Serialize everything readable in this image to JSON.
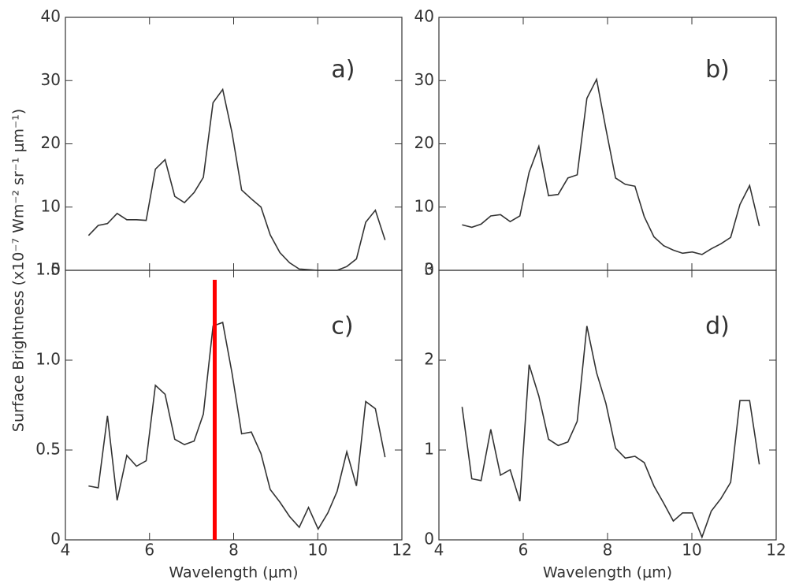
{
  "chart_data": [
    {
      "type": "line",
      "annotation": "a)",
      "ylabel": "Surface Brightness (x10⁻⁷ Wm⁻² sr⁻¹ μm⁻¹)",
      "x": [
        4.55,
        4.78,
        5.0,
        5.23,
        5.46,
        5.69,
        5.92,
        6.14,
        6.37,
        6.6,
        6.83,
        7.06,
        7.28,
        7.51,
        7.74,
        7.96,
        8.19,
        8.42,
        8.65,
        8.87,
        9.1,
        9.33,
        9.56,
        9.78,
        10.01,
        10.24,
        10.46,
        10.69,
        10.92,
        11.14,
        11.37,
        11.6
      ],
      "values": [
        5.5,
        7.1,
        7.4,
        9.0,
        8.0,
        8.0,
        7.9,
        16.0,
        17.5,
        11.7,
        10.7,
        12.3,
        14.7,
        26.5,
        28.6,
        21.8,
        12.7,
        11.3,
        10.0,
        5.6,
        2.8,
        1.2,
        0.2,
        0.1,
        0,
        0,
        0,
        0.6,
        1.8,
        7.6,
        9.5,
        4.8
      ],
      "color": "#333333",
      "xlim": [
        4,
        12
      ],
      "xticks": [
        4,
        6,
        8,
        10,
        12
      ],
      "ylim": [
        0,
        40
      ],
      "yticks": [
        0,
        10,
        20,
        30,
        40
      ]
    },
    {
      "type": "line",
      "annotation": "b)",
      "x": [
        4.55,
        4.78,
        5.0,
        5.23,
        5.46,
        5.69,
        5.92,
        6.14,
        6.37,
        6.6,
        6.83,
        7.06,
        7.28,
        7.51,
        7.74,
        7.96,
        8.19,
        8.42,
        8.65,
        8.87,
        9.1,
        9.33,
        9.56,
        9.78,
        10.01,
        10.24,
        10.46,
        10.69,
        10.92,
        11.14,
        11.37,
        11.6
      ],
      "values": [
        7.2,
        6.8,
        7.3,
        8.6,
        8.8,
        7.7,
        8.6,
        15.5,
        19.6,
        11.8,
        12.0,
        14.6,
        15.1,
        27.2,
        30.2,
        22.4,
        14.6,
        13.6,
        13.3,
        8.5,
        5.3,
        3.9,
        3.2,
        2.7,
        2.9,
        2.5,
        3.4,
        4.2,
        5.2,
        10.4,
        13.4,
        7.0
      ],
      "color": "#333333",
      "xlim": [
        4,
        12
      ],
      "xticks": [
        4,
        6,
        8,
        10,
        12
      ],
      "ylim": [
        0,
        40
      ],
      "yticks": [
        0,
        10,
        20,
        30,
        40
      ]
    },
    {
      "type": "line",
      "annotation": "c)",
      "xlabel": "Wavelength (μm)",
      "x": [
        4.55,
        4.78,
        5.0,
        5.23,
        5.46,
        5.69,
        5.92,
        6.14,
        6.37,
        6.6,
        6.83,
        7.06,
        7.28,
        7.51,
        7.74,
        7.96,
        8.19,
        8.42,
        8.65,
        8.87,
        9.1,
        9.33,
        9.56,
        9.78,
        10.01,
        10.24,
        10.46,
        10.69,
        10.92,
        11.14,
        11.37,
        11.6
      ],
      "values": [
        0.3,
        0.29,
        0.69,
        0.22,
        0.47,
        0.41,
        0.44,
        0.86,
        0.81,
        0.56,
        0.53,
        0.55,
        0.7,
        1.19,
        1.21,
        0.93,
        0.59,
        0.6,
        0.48,
        0.28,
        0.21,
        0.13,
        0.07,
        0.18,
        0.06,
        0.15,
        0.27,
        0.49,
        0.3,
        0.77,
        0.73,
        0.46
      ],
      "color": "#333333",
      "xlim": [
        4,
        12
      ],
      "xticks": [
        4,
        6,
        8,
        10,
        12
      ],
      "ylim": [
        0,
        1.5
      ],
      "yticks": [
        0,
        0.5,
        {
          "value": 1.0,
          "label": "1.0"
        },
        1.5
      ],
      "vline": {
        "x": 7.55,
        "color": "#ff0000"
      }
    },
    {
      "type": "line",
      "annotation": "d)",
      "xlabel": "Wavelength (μm)",
      "x": [
        4.55,
        4.78,
        5.0,
        5.23,
        5.46,
        5.69,
        5.92,
        6.14,
        6.37,
        6.6,
        6.83,
        7.06,
        7.28,
        7.51,
        7.74,
        7.96,
        8.19,
        8.42,
        8.65,
        8.87,
        9.1,
        9.33,
        9.56,
        9.78,
        10.01,
        10.24,
        10.46,
        10.69,
        10.92,
        11.14,
        11.37,
        11.6
      ],
      "values": [
        1.48,
        0.68,
        0.66,
        1.23,
        0.72,
        0.78,
        0.43,
        1.95,
        1.6,
        1.12,
        1.05,
        1.09,
        1.32,
        2.38,
        1.86,
        1.52,
        1.02,
        0.91,
        0.93,
        0.86,
        0.6,
        0.41,
        0.21,
        0.3,
        0.3,
        0.03,
        0.32,
        0.46,
        0.64,
        1.55,
        1.55,
        0.84
      ],
      "color": "#333333",
      "xlim": [
        4,
        12
      ],
      "xticks": [
        4,
        6,
        8,
        10,
        12
      ],
      "ylim": [
        0,
        3
      ],
      "yticks": [
        0,
        1,
        2,
        3
      ]
    }
  ]
}
